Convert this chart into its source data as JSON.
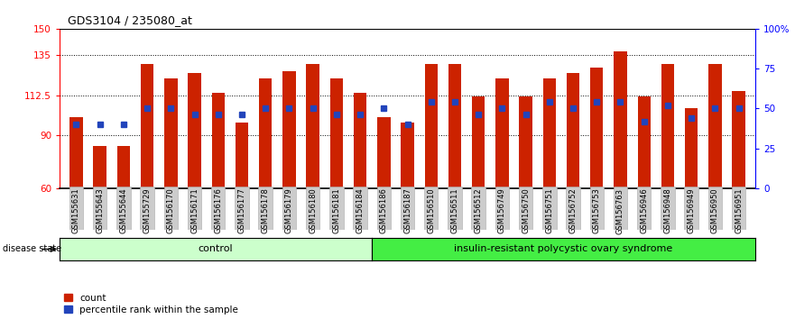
{
  "title": "GDS3104 / 235080_at",
  "samples": [
    "GSM155631",
    "GSM155643",
    "GSM155644",
    "GSM155729",
    "GSM156170",
    "GSM156171",
    "GSM156176",
    "GSM156177",
    "GSM156178",
    "GSM156179",
    "GSM156180",
    "GSM156181",
    "GSM156184",
    "GSM156186",
    "GSM156187",
    "GSM156510",
    "GSM156511",
    "GSM156512",
    "GSM156749",
    "GSM156750",
    "GSM156751",
    "GSM156752",
    "GSM156753",
    "GSM156763",
    "GSM156946",
    "GSM156948",
    "GSM156949",
    "GSM156950",
    "GSM156951"
  ],
  "bar_values": [
    100,
    84,
    84,
    130,
    122,
    125,
    114,
    97,
    122,
    126,
    130,
    122,
    114,
    100,
    97,
    130,
    130,
    112,
    122,
    112,
    122,
    125,
    128,
    137,
    112,
    130,
    105,
    130,
    115
  ],
  "percentile_values": [
    40,
    40,
    40,
    50,
    50,
    46,
    46,
    46,
    50,
    50,
    50,
    46,
    46,
    50,
    40,
    54,
    54,
    46,
    50,
    46,
    54,
    50,
    54,
    54,
    42,
    52,
    44,
    50,
    50
  ],
  "n_control": 13,
  "group_labels": [
    "control",
    "insulin-resistant polycystic ovary syndrome"
  ],
  "group_colors": [
    "#ccffcc",
    "#44ee44"
  ],
  "ylim_left": [
    60,
    150
  ],
  "ylim_right": [
    0,
    100
  ],
  "yticks_left": [
    60,
    90,
    112.5,
    135,
    150
  ],
  "ytick_labels_left": [
    "60",
    "90",
    "112.5",
    "135",
    "150"
  ],
  "yticks_right": [
    0,
    25,
    50,
    75,
    100
  ],
  "ytick_labels_right": [
    "0",
    "25",
    "50",
    "75",
    "100%"
  ],
  "bar_color": "#cc2200",
  "dot_color": "#2244bb",
  "bg_color": "#ffffff",
  "tick_bg": "#cccccc"
}
